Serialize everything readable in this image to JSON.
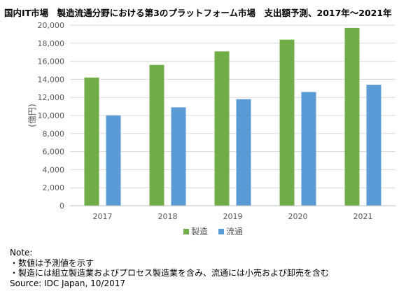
{
  "title": "国内IT市場　製造流通分野における第3のプラットフォーム市場　支出額予測、2017年～2021年",
  "colors": {
    "series_1": "#70AD47",
    "series_2": "#5B9BD5",
    "grid": "#D9D9D9",
    "axis_text": "#595959"
  },
  "chart_data": {
    "type": "bar",
    "categories": [
      "2017",
      "2018",
      "2019",
      "2020",
      "2021"
    ],
    "series": [
      {
        "name": "製造",
        "values": [
          14200,
          15600,
          17100,
          18400,
          19700
        ]
      },
      {
        "name": "流通",
        "values": [
          10000,
          10900,
          11800,
          12600,
          13400
        ]
      }
    ],
    "ylabel": "(億円)",
    "ylim": [
      0,
      20000
    ],
    "yticks": [
      "0",
      "2,000",
      "4,000",
      "6,000",
      "8,000",
      "10,000",
      "12,000",
      "14,000",
      "16,000",
      "18,000",
      "20,000"
    ],
    "grid": true,
    "legend": "bottom"
  },
  "notes": {
    "heading": "Note:",
    "line1": "・数値は予測値を示す",
    "line2": "・製造には組立製造業およびプロセス製造業を含み、流通には小売および卸売を含む",
    "source": "Source: IDC Japan, 10/2017"
  }
}
